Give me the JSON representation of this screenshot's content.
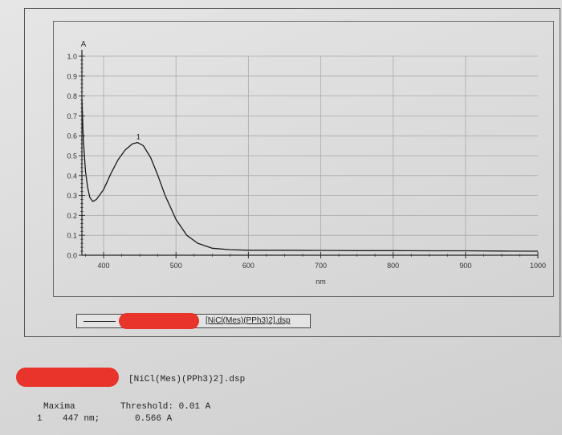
{
  "chart_data": {
    "type": "line",
    "title": "",
    "xlabel": "nm",
    "ylabel": "A",
    "xlim": [
      370,
      1000
    ],
    "ylim": [
      0.0,
      1.0
    ],
    "x_ticks": [
      "400",
      "500",
      "600",
      "700",
      "800",
      "900",
      "1000"
    ],
    "y_ticks": [
      "0.0",
      "0.1",
      "0.2",
      "0.3",
      "0.4",
      "0.5",
      "0.6",
      "0.7",
      "0.8",
      "0.9",
      "1.0"
    ],
    "grid": true,
    "series": [
      {
        "name": "[NiCl(Mes)(PPh3)2].dsp",
        "x": [
          370,
          372,
          375,
          378,
          381,
          385,
          390,
          400,
          410,
          420,
          430,
          440,
          447,
          455,
          465,
          475,
          485,
          500,
          515,
          530,
          550,
          575,
          600,
          650,
          700,
          750,
          800,
          850,
          900,
          950,
          1000
        ],
        "y": [
          0.78,
          0.58,
          0.42,
          0.34,
          0.29,
          0.27,
          0.28,
          0.33,
          0.41,
          0.48,
          0.53,
          0.56,
          0.566,
          0.55,
          0.49,
          0.4,
          0.3,
          0.18,
          0.1,
          0.06,
          0.035,
          0.028,
          0.025,
          0.025,
          0.024,
          0.023,
          0.023,
          0.022,
          0.022,
          0.021,
          0.02
        ]
      }
    ],
    "annotations": [
      {
        "label": "1",
        "x": 447,
        "y": 0.566
      }
    ]
  },
  "legend": {
    "label": "[NiCl(Mes)(PPh3)2].dsp"
  },
  "report": {
    "filename": "[NiCl(Mes)(PPh3)2].dsp",
    "maxima_header": "Maxima",
    "threshold": "Threshold: 0.01 A",
    "rows": [
      {
        "index": "1",
        "wavelength": "447 nm;",
        "absorbance": "0.566 A"
      }
    ]
  }
}
